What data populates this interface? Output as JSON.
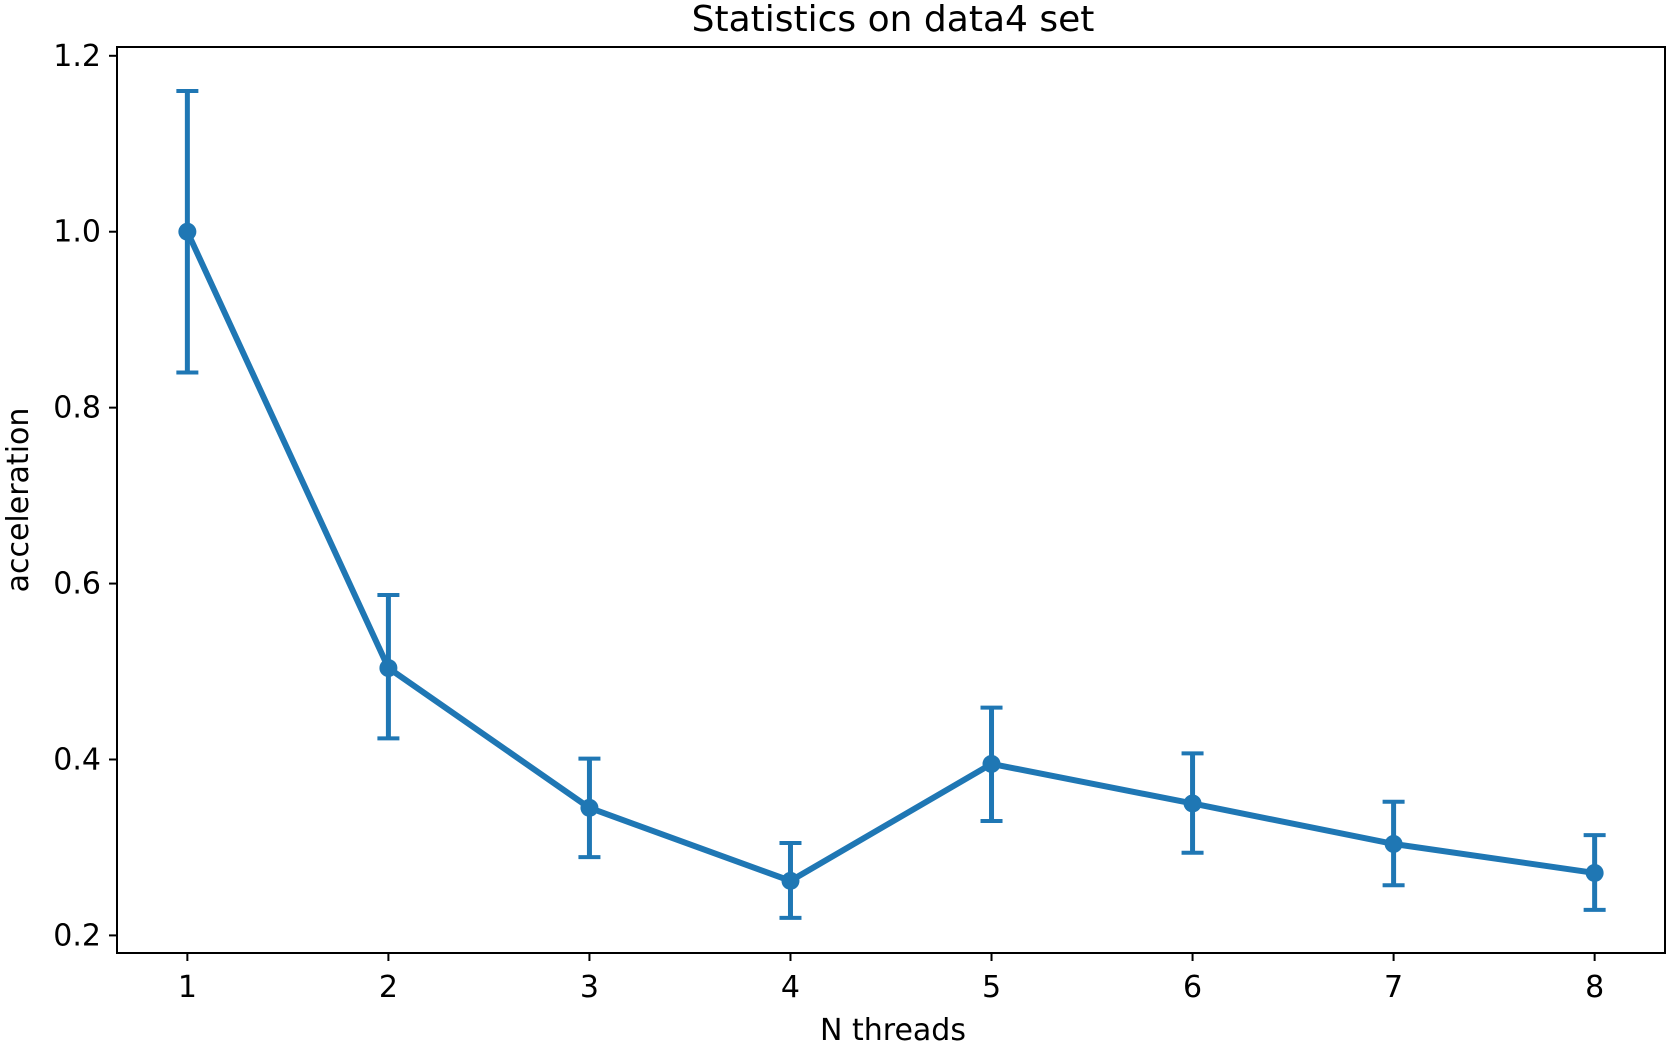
{
  "chart_data": {
    "type": "line",
    "title": "Statistics on data4 set",
    "xlabel": "N threads",
    "ylabel": "acceleration",
    "x": [
      1,
      2,
      3,
      4,
      5,
      6,
      7,
      8
    ],
    "series": [
      {
        "values": [
          1.0,
          0.504,
          0.345,
          0.262,
          0.395,
          0.35,
          0.304,
          0.271
        ],
        "error_low": [
          0.84,
          0.424,
          0.289,
          0.22,
          0.33,
          0.294,
          0.257,
          0.229
        ],
        "error_high": [
          1.16,
          0.587,
          0.401,
          0.305,
          0.459,
          0.407,
          0.352,
          0.314
        ],
        "color": "#1f77b4"
      }
    ],
    "xticks": [
      "1",
      "2",
      "3",
      "4",
      "5",
      "6",
      "7",
      "8"
    ],
    "yticks": [
      "0.2",
      "0.4",
      "0.6",
      "0.8",
      "1.0",
      "1.2"
    ],
    "xlim": [
      0.65,
      8.35
    ],
    "ylim": [
      0.18,
      1.21
    ],
    "grid": false,
    "legend": "none"
  }
}
